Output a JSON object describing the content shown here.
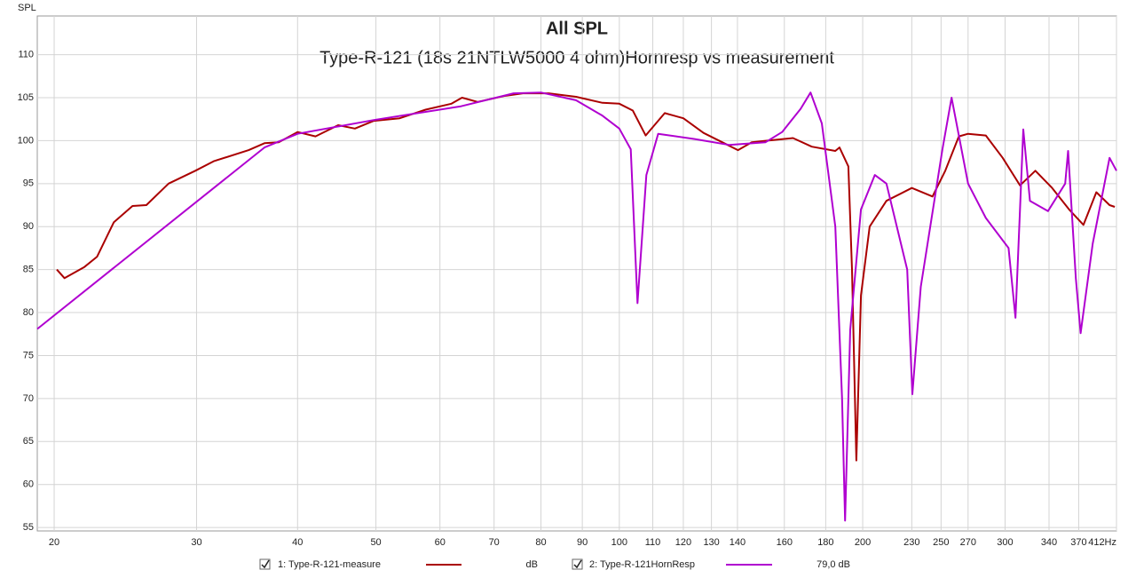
{
  "chart_data": {
    "type": "line",
    "title": "All SPL",
    "subtitle": "Type-R-121 (18s 21NTLW5000 4 ohm)Hornresp vs measurement",
    "y_label": "SPL",
    "log_x": true,
    "grid": true,
    "xlim": [
      19.06,
      412
    ],
    "ylim": [
      54.6,
      114.5
    ],
    "xticks": [
      20,
      30,
      40,
      50,
      60,
      70,
      80,
      90,
      100,
      110,
      120,
      130,
      140,
      160,
      180,
      200,
      230,
      250,
      270,
      300,
      340,
      370,
      {
        "value": 412,
        "label": "412Hz"
      }
    ],
    "yticks": [
      55,
      60,
      65,
      70,
      75,
      80,
      85,
      90,
      95,
      100,
      105,
      110
    ],
    "series": [
      {
        "name": "1: Type-R-121-measure",
        "legend_suffix": "dB",
        "color": "#aa0000",
        "x": [
          20.15,
          20.6,
          21.8,
          22.6,
          23.7,
          25,
          26,
          27.7,
          29.9,
          31.5,
          34.8,
          36.4,
          37.9,
          40,
          42.1,
          44.9,
          47.1,
          49.7,
          53.5,
          57.6,
          62,
          63.9,
          66.8,
          72,
          76,
          81.8,
          88.4,
          95.3,
          100,
          103.9,
          107.8,
          113.8,
          120,
          127.1,
          134.8,
          140.2,
          145.8,
          152.5,
          164,
          173,
          185,
          187.2,
          192,
          194,
          196.4,
          199,
          204,
          214,
          230,
          244,
          253,
          263,
          270,
          284,
          298,
          313,
          327,
          343,
          360,
          375,
          389,
          404,
          410
        ],
        "values": [
          85,
          84,
          85.3,
          86.5,
          90.5,
          92.4,
          92.5,
          95,
          96.5,
          97.6,
          98.9,
          99.7,
          99.8,
          101,
          100.5,
          101.8,
          101.4,
          102.3,
          102.6,
          103.6,
          104.3,
          105,
          104.5,
          105.2,
          105.5,
          105.5,
          105.1,
          104.4,
          104.3,
          103.5,
          100.6,
          103.2,
          102.6,
          100.9,
          99.7,
          98.9,
          99.8,
          100,
          100.3,
          99.3,
          98.8,
          99.2,
          97,
          85,
          62.8,
          82,
          90,
          93,
          94.5,
          93.5,
          96.5,
          100.5,
          100.8,
          100.6,
          98,
          94.8,
          96.5,
          94.5,
          92,
          90.2,
          94,
          92.5,
          92.3
        ]
      },
      {
        "name": "2: Type-R-121HornResp",
        "legend_suffix": "79,0 dB",
        "color": "#b000d0",
        "x": [
          19.06,
          36.4,
          40,
          49.7,
          63.7,
          74,
          80,
          88.4,
          95.3,
          100,
          103.3,
          105.3,
          108,
          111.7,
          123.7,
          136.7,
          151.6,
          159,
          167.6,
          172.4,
          178,
          185,
          188.6,
          190.2,
          193,
          199,
          207,
          214,
          227,
          230.4,
          236,
          251,
          257.6,
          270,
          284,
          303,
          309,
          313,
          316,
          322,
          339,
          356,
          359,
          367,
          372,
          385,
          404,
          412
        ],
        "values": [
          78.1,
          99.2,
          100.8,
          102.4,
          104,
          105.5,
          105.6,
          104.7,
          102.9,
          101.4,
          99,
          81.1,
          96,
          100.8,
          100.2,
          99.5,
          99.8,
          101,
          103.7,
          105.6,
          102,
          90,
          70,
          55.8,
          78,
          92,
          96,
          95,
          85,
          70.5,
          83,
          99,
          105,
          95,
          91,
          87.5,
          79.4,
          92,
          101.3,
          93,
          91.8,
          95,
          98.8,
          84,
          77.6,
          88,
          98,
          96.5
        ]
      }
    ]
  }
}
